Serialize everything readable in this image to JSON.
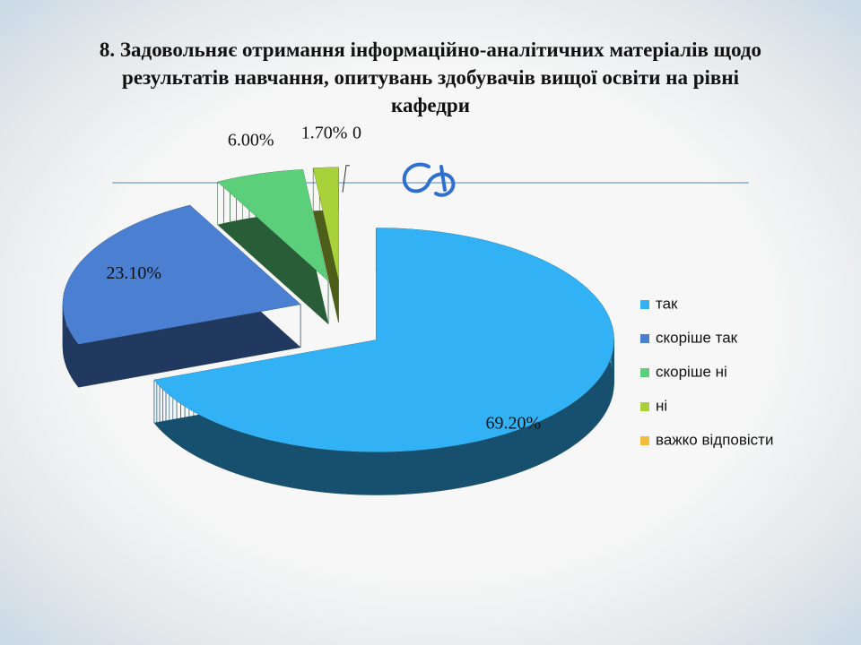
{
  "chart_data": {
    "type": "pie",
    "title": "8. Задовольняє отримання інформаційно-аналітичних матеріалів щодо результатів навчання, опитувань здобувачів вищої освіти на рівні кафедри",
    "categories": [
      "так",
      "скоріше так",
      "скоріше ні",
      "ні",
      "важко відповісти"
    ],
    "values": [
      69.2,
      23.1,
      6.0,
      1.7,
      0
    ],
    "value_labels": [
      "69.20%",
      "23.10%",
      "6.00%",
      "1.70%",
      "0"
    ],
    "colors": [
      "#33b1f5",
      "#4a7fd2",
      "#5ccf7b",
      "#a8d13a",
      "#f1bd3c"
    ],
    "legend": "right"
  }
}
